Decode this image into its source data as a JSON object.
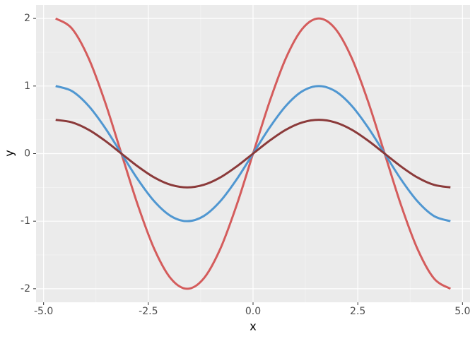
{
  "chart_data": {
    "type": "line",
    "x_label": "x",
    "y_label": "y",
    "x": [
      -4.712,
      -4.32,
      -3.927,
      -3.534,
      -3.142,
      -2.749,
      -2.356,
      -1.963,
      -1.571,
      -1.178,
      -0.785,
      -0.393,
      0,
      0.393,
      0.785,
      1.178,
      1.571,
      1.963,
      2.356,
      2.749,
      3.142,
      3.534,
      3.927,
      4.32,
      4.712
    ],
    "series": [
      {
        "color": "#d45c5c",
        "values": [
          2,
          1.848,
          1.414,
          0.765,
          0,
          -0.765,
          -1.414,
          -1.848,
          -2,
          -1.848,
          -1.414,
          -0.765,
          0,
          0.765,
          1.414,
          1.848,
          2,
          1.848,
          1.414,
          0.765,
          0,
          -0.765,
          -1.414,
          -1.848,
          -2
        ]
      },
      {
        "color": "#5097d1",
        "values": [
          1,
          0.924,
          0.707,
          0.383,
          0,
          -0.383,
          -0.707,
          -0.924,
          -1,
          -0.924,
          -0.707,
          -0.383,
          0,
          0.383,
          0.707,
          0.924,
          1,
          0.924,
          0.707,
          0.383,
          0,
          -0.383,
          -0.707,
          -0.924,
          -1
        ]
      },
      {
        "color": "#8b3a3a",
        "values": [
          0.5,
          0.462,
          0.354,
          0.191,
          0,
          -0.191,
          -0.354,
          -0.462,
          -0.5,
          -0.462,
          -0.354,
          -0.191,
          0,
          0.191,
          0.354,
          0.462,
          0.5,
          0.462,
          0.354,
          0.191,
          0,
          -0.191,
          -0.354,
          -0.462,
          -0.5
        ]
      }
    ],
    "xlim": [
      -5.18,
      5.18
    ],
    "xticks": [
      {
        "value": -5,
        "label": "-5.0"
      },
      {
        "value": -2.5,
        "label": "-2.5"
      },
      {
        "value": 0,
        "label": "0.0"
      },
      {
        "value": 2.5,
        "label": "2.5"
      },
      {
        "value": 5,
        "label": "5.0"
      }
    ],
    "ylim": [
      -2.2,
      2.2
    ],
    "yticks": [
      -2,
      -1,
      0,
      1,
      2
    ],
    "grid": true
  }
}
